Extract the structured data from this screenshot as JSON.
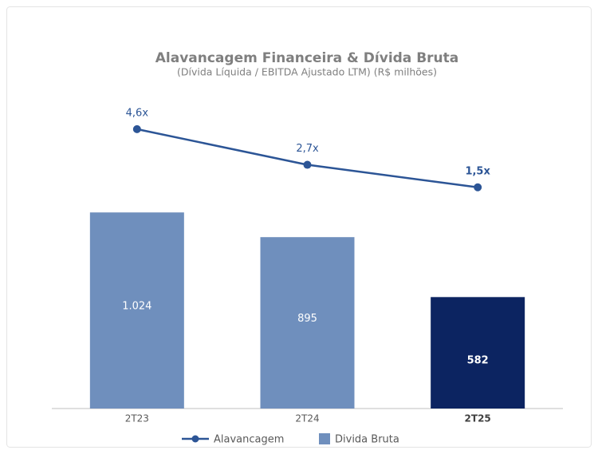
{
  "chart_data": {
    "type": "bar",
    "title": "Alavancagem Financeira & Dívida Bruta",
    "subtitle": "(Dívida Líquida / EBITDA Ajustado LTM) (R$ milhões)",
    "categories": [
      "2T23",
      "2T24",
      "2T25"
    ],
    "series": [
      {
        "name": "Alavancagem",
        "type": "line",
        "axis": "y2",
        "color": "#2c5596",
        "values": [
          4.6,
          2.7,
          1.5
        ],
        "value_labels": [
          "4,6x",
          "2,7x",
          "1,5x"
        ]
      },
      {
        "name": "Divida Bruta",
        "type": "bar",
        "color": "#6f8fbd",
        "colors": [
          "#6f8fbd",
          "#6f8fbd",
          "#0c2461"
        ],
        "values": [
          1024,
          895,
          582
        ],
        "value_labels": [
          "1.024",
          "895",
          "582"
        ]
      }
    ],
    "ylim": [
      0,
      1200
    ],
    "y2lim": [
      0,
      5
    ],
    "legend": "bottom"
  }
}
